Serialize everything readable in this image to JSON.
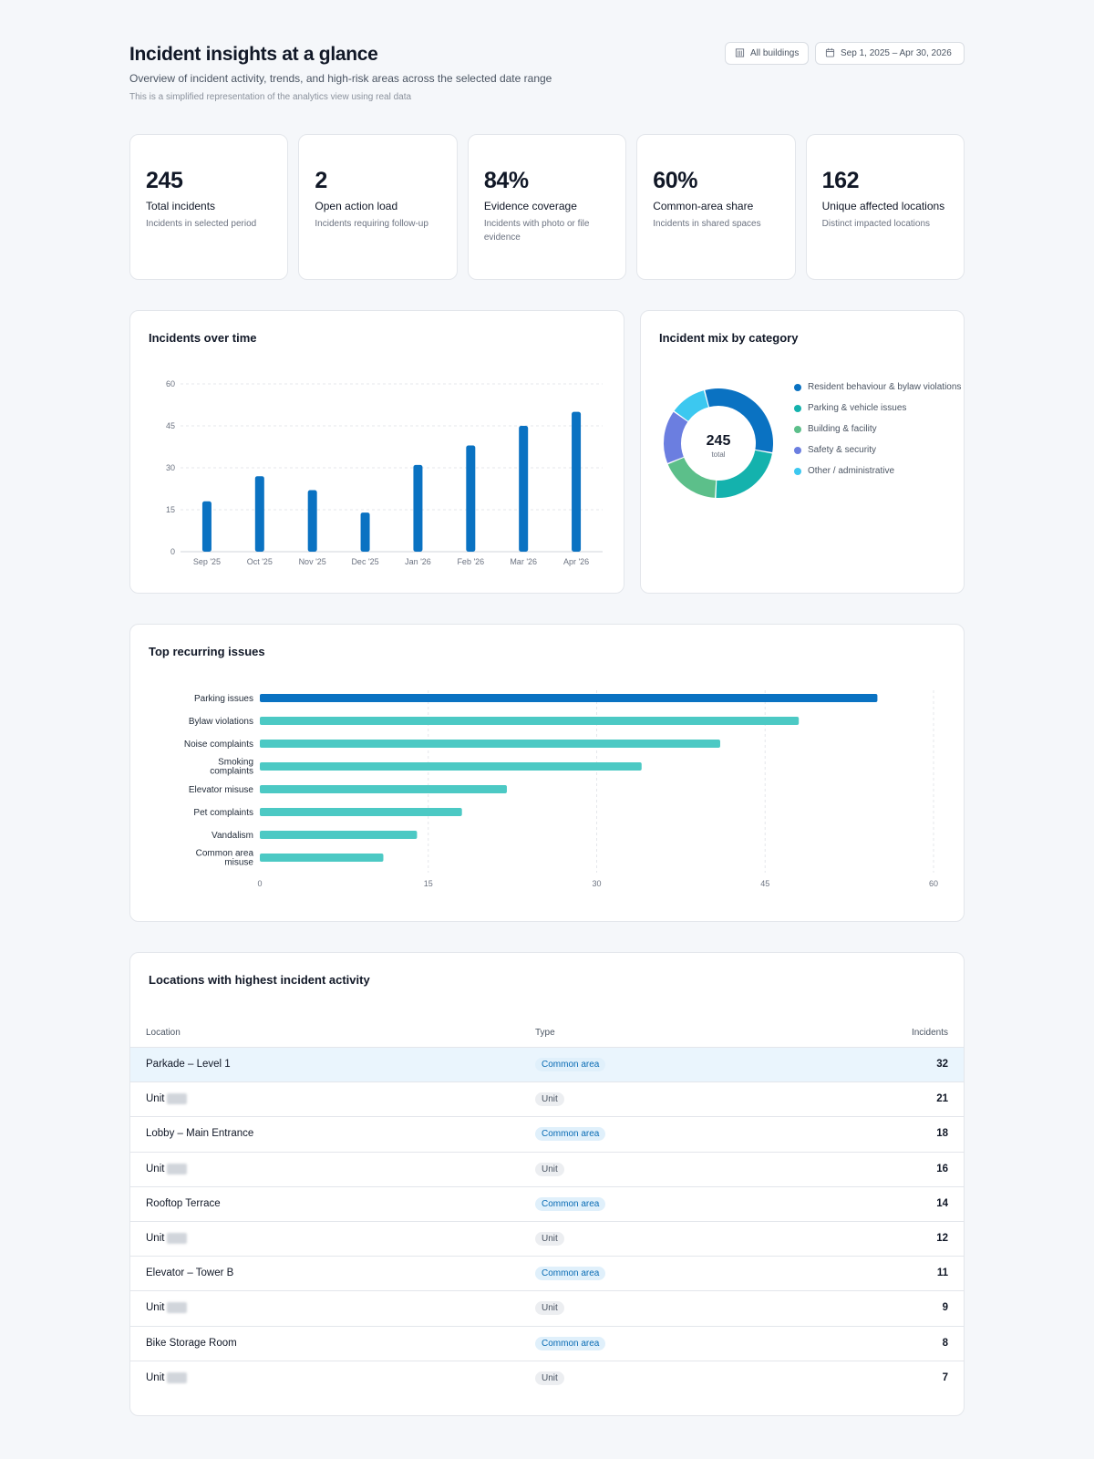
{
  "header": {
    "title": "Incident insights at a glance",
    "subtitle": "Overview of incident activity, trends, and high-risk areas across the selected date range",
    "note": "This is a simplified representation of the analytics view using real data",
    "buildings_filter": "All buildings",
    "date_range": "Sep 1, 2025 – Apr 30, 2026",
    "buildings_icon": "building-icon",
    "date_icon": "calendar-icon"
  },
  "kpis": [
    {
      "value": "245",
      "label": "Total incidents",
      "desc": "Incidents in selected period"
    },
    {
      "value": "2",
      "label": "Open action load",
      "desc": "Incidents requiring follow-up"
    },
    {
      "value": "84%",
      "label": "Evidence coverage",
      "desc": "Incidents with photo or file evidence"
    },
    {
      "value": "60%",
      "label": "Common-area share",
      "desc": "Incidents in shared spaces"
    },
    {
      "value": "162",
      "label": "Unique affected locations",
      "desc": "Distinct impacted locations"
    }
  ],
  "over_time": {
    "title": "Incidents over time"
  },
  "mix": {
    "title": "Incident mix by category",
    "center_value": "245",
    "center_label": "total"
  },
  "recurring": {
    "title": "Top recurring issues"
  },
  "locations": {
    "title": "Locations with highest incident activity",
    "columns": {
      "location": "Location",
      "type": "Type",
      "incidents": "Incidents"
    },
    "rows": [
      {
        "location": "Parkade – Level 1",
        "masked": false,
        "type": "Common area",
        "kind": "common",
        "incidents": "32"
      },
      {
        "location": "Unit",
        "masked": true,
        "type": "Unit",
        "kind": "unit",
        "incidents": "21"
      },
      {
        "location": "Lobby – Main Entrance",
        "masked": false,
        "type": "Common area",
        "kind": "common",
        "incidents": "18"
      },
      {
        "location": "Unit",
        "masked": true,
        "type": "Unit",
        "kind": "unit",
        "incidents": "16"
      },
      {
        "location": "Rooftop Terrace",
        "masked": false,
        "type": "Common area",
        "kind": "common",
        "incidents": "14"
      },
      {
        "location": "Unit",
        "masked": true,
        "type": "Unit",
        "kind": "unit",
        "incidents": "12"
      },
      {
        "location": "Elevator – Tower B",
        "masked": false,
        "type": "Common area",
        "kind": "common",
        "incidents": "11"
      },
      {
        "location": "Unit",
        "masked": true,
        "type": "Unit",
        "kind": "unit",
        "incidents": "9"
      },
      {
        "location": "Bike Storage Room",
        "masked": false,
        "type": "Common area",
        "kind": "common",
        "incidents": "8"
      },
      {
        "location": "Unit",
        "masked": true,
        "type": "Unit",
        "kind": "unit",
        "incidents": "7"
      }
    ]
  },
  "colors": {
    "primary": "#0a72c2",
    "teal": "#4cc9c4",
    "row_highlight": "#eaf5fd"
  },
  "chart_data": [
    {
      "type": "bar",
      "categories": [
        "Sep '25",
        "Oct '25",
        "Nov '25",
        "Dec '25",
        "Jan '26",
        "Feb '26",
        "Mar '26",
        "Apr '26"
      ],
      "values": [
        18,
        27,
        22,
        14,
        31,
        38,
        45,
        50
      ],
      "ylim": [
        0,
        60
      ],
      "yticks": [
        0,
        15,
        30,
        45,
        60
      ],
      "grid": true,
      "color": "#0a72c2"
    },
    {
      "type": "pie",
      "categories": [
        "Resident behaviour & bylaw violations",
        "Parking & vehicle issues",
        "Building & facility",
        "Safety & security",
        "Other / administrative"
      ],
      "values": [
        32,
        23,
        18,
        16,
        11
      ],
      "colors": [
        "#0a72c2",
        "#14b2ad",
        "#5cbf8a",
        "#6b7ee0",
        "#3cc8f0"
      ],
      "total": 245,
      "legend": "right"
    },
    {
      "type": "bar",
      "orientation": "horizontal",
      "categories": [
        "Parking issues",
        "Bylaw violations",
        "Noise complaints",
        "Smoking complaints",
        "Elevator misuse",
        "Pet complaints",
        "Vandalism",
        "Common area misuse"
      ],
      "values": [
        55,
        48,
        41,
        34,
        22,
        18,
        14,
        11
      ],
      "xlim": [
        0,
        60
      ],
      "xticks": [
        0,
        15,
        30,
        45,
        60
      ],
      "grid": true,
      "colors": [
        "#0a72c2",
        "#4cc9c4",
        "#4cc9c4",
        "#4cc9c4",
        "#4cc9c4",
        "#4cc9c4",
        "#4cc9c4",
        "#4cc9c4"
      ]
    }
  ]
}
